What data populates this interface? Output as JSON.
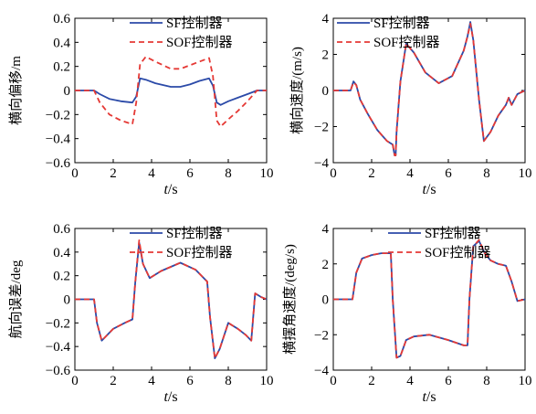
{
  "chart_data": [
    {
      "type": "line",
      "xlabel_var": "t",
      "xlabel_unit": "/s",
      "ylabel": "横向偏移/m",
      "xlim": [
        0,
        10
      ],
      "ylim": [
        -0.6,
        0.6
      ],
      "xticks": [
        "0",
        "2",
        "4",
        "6",
        "8",
        "10"
      ],
      "yticks": [
        "-0.6",
        "-0.4",
        "-0.2",
        "0",
        "0.2",
        "0.4",
        "0.6"
      ],
      "legend_position": "top-right",
      "series": [
        {
          "name": "SF控制器",
          "color": "#2b4aa8",
          "dash": "solid",
          "x": [
            0,
            1,
            1.3,
            1.8,
            2.4,
            3,
            3.2,
            3.4,
            3.7,
            4.2,
            5,
            5.5,
            6,
            6.5,
            7,
            7.2,
            7.4,
            7.6,
            8,
            8.5,
            9,
            9.5,
            10
          ],
          "y": [
            0,
            0,
            -0.03,
            -0.07,
            -0.09,
            -0.1,
            -0.05,
            0.1,
            0.09,
            0.06,
            0.03,
            0.03,
            0.05,
            0.08,
            0.1,
            0.04,
            -0.1,
            -0.12,
            -0.09,
            -0.06,
            -0.03,
            0,
            0
          ]
        },
        {
          "name": "SOF控制器",
          "color": "#e53935",
          "dash": "dashed",
          "x": [
            0,
            1,
            1.3,
            1.8,
            2.4,
            3,
            3.2,
            3.4,
            3.7,
            4.2,
            5,
            5.5,
            6,
            6.5,
            7,
            7.2,
            7.4,
            7.6,
            8,
            8.5,
            9,
            9.5,
            10
          ],
          "y": [
            0,
            0,
            -0.1,
            -0.2,
            -0.25,
            -0.28,
            -0.1,
            0.22,
            0.28,
            0.24,
            0.18,
            0.18,
            0.21,
            0.24,
            0.27,
            0.12,
            -0.25,
            -0.3,
            -0.24,
            -0.17,
            -0.09,
            0,
            0
          ]
        }
      ]
    },
    {
      "type": "line",
      "xlabel_var": "t",
      "xlabel_unit": "/s",
      "ylabel": "横向速度/(m/s)",
      "xlim": [
        0,
        10
      ],
      "ylim": [
        -4,
        4
      ],
      "xticks": [
        "0",
        "2",
        "4",
        "6",
        "8",
        "10"
      ],
      "yticks": [
        "-4",
        "-2",
        "0",
        "2",
        "4"
      ],
      "legend_position": "top-left",
      "series": [
        {
          "name": "SF控制器",
          "color": "#2b4aa8",
          "dash": "solid",
          "x": [
            0,
            0.9,
            1.05,
            1.2,
            1.4,
            1.8,
            2.3,
            2.8,
            3.1,
            3.2,
            3.25,
            3.3,
            3.5,
            3.8,
            4.2,
            4.8,
            5.5,
            6.2,
            6.8,
            7.0,
            7.15,
            7.3,
            7.6,
            7.85,
            8.2,
            8.6,
            9.0,
            9.15,
            9.3,
            9.6,
            10
          ],
          "y": [
            0,
            0,
            0.5,
            0.3,
            -0.5,
            -1.3,
            -2.2,
            -2.8,
            -3.0,
            -3.6,
            -3.6,
            -2.3,
            0.5,
            2.6,
            2.1,
            1.0,
            0.4,
            0.8,
            2.2,
            3.0,
            3.8,
            2.8,
            -0.5,
            -2.8,
            -2.3,
            -1.4,
            -0.8,
            -0.4,
            -0.8,
            -0.2,
            0
          ]
        },
        {
          "name": "SOF控制器",
          "color": "#e53935",
          "dash": "dashed",
          "x": [
            0,
            0.9,
            1.05,
            1.2,
            1.4,
            1.8,
            2.3,
            2.8,
            3.1,
            3.2,
            3.25,
            3.3,
            3.5,
            3.8,
            4.2,
            4.8,
            5.5,
            6.2,
            6.8,
            7.0,
            7.15,
            7.3,
            7.6,
            7.85,
            8.2,
            8.6,
            9.0,
            9.15,
            9.3,
            9.6,
            10
          ],
          "y": [
            0,
            0,
            0.45,
            0.3,
            -0.5,
            -1.3,
            -2.2,
            -2.8,
            -3.0,
            -3.6,
            -3.6,
            -2.3,
            0.5,
            2.6,
            2.1,
            1.0,
            0.4,
            0.8,
            2.2,
            3.0,
            3.7,
            2.8,
            -0.5,
            -2.8,
            -2.3,
            -1.4,
            -0.8,
            -0.4,
            -0.8,
            -0.2,
            0
          ]
        }
      ]
    },
    {
      "type": "line",
      "xlabel_var": "t",
      "xlabel_unit": "/s",
      "ylabel": "航向误差/deg",
      "xlim": [
        0,
        10
      ],
      "ylim": [
        -0.6,
        0.6
      ],
      "xticks": [
        "0",
        "2",
        "4",
        "6",
        "8",
        "10"
      ],
      "yticks": [
        "-0.6",
        "-0.4",
        "-0.2",
        "0",
        "0.2",
        "0.4",
        "0.6"
      ],
      "legend_position": "top-right",
      "series": [
        {
          "name": "SF控制器",
          "color": "#2b4aa8",
          "dash": "solid",
          "x": [
            0,
            1,
            1.15,
            1.4,
            2,
            2.6,
            3.0,
            3.15,
            3.35,
            3.55,
            3.9,
            4.5,
            5.5,
            6.3,
            6.9,
            7.05,
            7.3,
            7.55,
            8,
            8.5,
            8.9,
            9.2,
            9.4,
            9.7,
            10
          ],
          "y": [
            0,
            0,
            -0.2,
            -0.35,
            -0.25,
            -0.2,
            -0.17,
            0.15,
            0.48,
            0.3,
            0.18,
            0.24,
            0.31,
            0.25,
            0.15,
            -0.15,
            -0.5,
            -0.42,
            -0.2,
            -0.25,
            -0.3,
            -0.35,
            0.05,
            0.02,
            0
          ]
        },
        {
          "name": "SOF控制器",
          "color": "#e53935",
          "dash": "dashed",
          "x": [
            0,
            1,
            1.15,
            1.4,
            2,
            2.6,
            3.0,
            3.15,
            3.35,
            3.55,
            3.9,
            4.5,
            5.5,
            6.3,
            6.9,
            7.05,
            7.3,
            7.55,
            8,
            8.5,
            8.9,
            9.2,
            9.4,
            9.7,
            10
          ],
          "y": [
            0,
            0,
            -0.2,
            -0.35,
            -0.25,
            -0.2,
            -0.17,
            0.15,
            0.5,
            0.3,
            0.18,
            0.24,
            0.31,
            0.25,
            0.15,
            -0.15,
            -0.5,
            -0.42,
            -0.2,
            -0.25,
            -0.3,
            -0.35,
            0.05,
            0.02,
            0
          ]
        }
      ]
    },
    {
      "type": "line",
      "xlabel_var": "t",
      "xlabel_unit": "/s",
      "ylabel": "横摆角速度/(deg/s)",
      "xlim": [
        0,
        10
      ],
      "ylim": [
        -4,
        4
      ],
      "xticks": [
        "0",
        "2",
        "4",
        "6",
        "8",
        "10"
      ],
      "yticks": [
        "-4",
        "-2",
        "0",
        "2",
        "4"
      ],
      "legend_position": "top-right",
      "series": [
        {
          "name": "SF控制器",
          "color": "#2b4aa8",
          "dash": "solid",
          "x": [
            0,
            1,
            1.2,
            1.5,
            2,
            2.5,
            3.0,
            3.1,
            3.3,
            3.5,
            3.8,
            4.2,
            5,
            6,
            6.8,
            7.0,
            7.1,
            7.3,
            7.6,
            7.9,
            8.2,
            8.6,
            9.0,
            9.3,
            9.6,
            10
          ],
          "y": [
            0,
            0,
            1.5,
            2.3,
            2.5,
            2.6,
            2.6,
            0,
            -3.3,
            -3.2,
            -2.3,
            -2.1,
            -2.0,
            -2.3,
            -2.6,
            -2.6,
            0,
            3.0,
            3.3,
            2.6,
            2.2,
            2.0,
            1.9,
            1.0,
            -0.1,
            0
          ]
        },
        {
          "name": "SOF控制器",
          "color": "#e53935",
          "dash": "dashed",
          "x": [
            0,
            1,
            1.2,
            1.5,
            2,
            2.5,
            3.0,
            3.1,
            3.3,
            3.5,
            3.8,
            4.2,
            5,
            6,
            6.8,
            7.0,
            7.1,
            7.3,
            7.6,
            7.9,
            8.2,
            8.6,
            9.0,
            9.3,
            9.6,
            10
          ],
          "y": [
            0,
            0,
            1.5,
            2.3,
            2.5,
            2.6,
            2.6,
            0,
            -3.3,
            -3.2,
            -2.3,
            -2.1,
            -2.0,
            -2.3,
            -2.6,
            -2.6,
            0,
            3.0,
            3.35,
            2.6,
            2.2,
            2.0,
            1.9,
            1.0,
            -0.1,
            0
          ]
        }
      ]
    }
  ]
}
